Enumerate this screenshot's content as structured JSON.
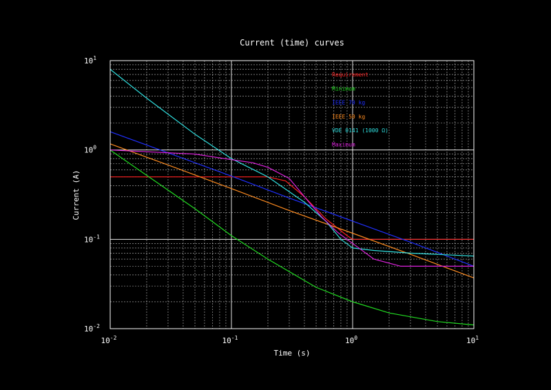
{
  "chart_data": {
    "type": "line",
    "title": "Current (time) curves",
    "xlabel": "Time (s)",
    "ylabel": "Current (A)",
    "xscale": "log",
    "yscale": "log",
    "xlim": [
      0.01,
      10
    ],
    "ylim": [
      0.01,
      10
    ],
    "grid": true,
    "legend_position": "top-right",
    "background_color": "#000000",
    "x_ticks": [
      {
        "base": "10",
        "exp": "-2",
        "value": 0.01
      },
      {
        "base": "10",
        "exp": "-1",
        "value": 0.1
      },
      {
        "base": "10",
        "exp": "0",
        "value": 1
      },
      {
        "base": "10",
        "exp": "1",
        "value": 10
      }
    ],
    "y_ticks": [
      {
        "base": "10",
        "exp": "-2",
        "value": 0.01
      },
      {
        "base": "10",
        "exp": "-1",
        "value": 0.1
      },
      {
        "base": "10",
        "exp": "0",
        "value": 1
      },
      {
        "base": "10",
        "exp": "1",
        "value": 10
      }
    ],
    "series": [
      {
        "name": "Requirement",
        "color": "#ff2020",
        "points": [
          [
            0.01,
            0.5
          ],
          [
            0.2,
            0.5
          ],
          [
            0.28,
            0.45
          ],
          [
            0.4,
            0.3
          ],
          [
            0.6,
            0.17
          ],
          [
            0.9,
            0.11
          ],
          [
            1.0,
            0.1
          ],
          [
            1.3,
            0.1
          ],
          [
            10,
            0.1
          ]
        ]
      },
      {
        "name": "Minimum",
        "color": "#22dd22",
        "points": [
          [
            0.01,
            1.0
          ],
          [
            0.02,
            0.52
          ],
          [
            0.05,
            0.22
          ],
          [
            0.1,
            0.11
          ],
          [
            0.2,
            0.06
          ],
          [
            0.5,
            0.029
          ],
          [
            1.0,
            0.02
          ],
          [
            2.0,
            0.015
          ],
          [
            5.0,
            0.012
          ],
          [
            10,
            0.011
          ]
        ]
      },
      {
        "name": "IEEE 70 kg",
        "color": "#2030ff",
        "points": [
          [
            0.01,
            1.6
          ],
          [
            0.03,
            0.93
          ],
          [
            0.1,
            0.51
          ],
          [
            0.3,
            0.29
          ],
          [
            1.0,
            0.16
          ],
          [
            3.0,
            0.093
          ],
          [
            10,
            0.05
          ]
        ]
      },
      {
        "name": "IEEE 50 kg",
        "color": "#ff8c20",
        "points": [
          [
            0.01,
            1.17
          ],
          [
            0.03,
            0.68
          ],
          [
            0.1,
            0.37
          ],
          [
            0.3,
            0.21
          ],
          [
            1.0,
            0.117
          ],
          [
            3.0,
            0.068
          ],
          [
            10,
            0.037
          ]
        ]
      },
      {
        "name": "VDE 0141 (1000 Ω)",
        "color": "#30e0e0",
        "points": [
          [
            0.01,
            8.0
          ],
          [
            0.02,
            3.8
          ],
          [
            0.05,
            1.5
          ],
          [
            0.1,
            0.8
          ],
          [
            0.2,
            0.5
          ],
          [
            0.4,
            0.26
          ],
          [
            0.6,
            0.16
          ],
          [
            0.8,
            0.1
          ],
          [
            1.0,
            0.08
          ],
          [
            1.5,
            0.075
          ],
          [
            3.0,
            0.07
          ],
          [
            10,
            0.065
          ]
        ]
      },
      {
        "name": "Maximum",
        "color": "#dd22dd",
        "points": [
          [
            0.01,
            1.0
          ],
          [
            0.05,
            0.9
          ],
          [
            0.1,
            0.78
          ],
          [
            0.15,
            0.72
          ],
          [
            0.2,
            0.64
          ],
          [
            0.3,
            0.48
          ],
          [
            0.4,
            0.3
          ],
          [
            0.55,
            0.18
          ],
          [
            0.75,
            0.12
          ],
          [
            1.0,
            0.09
          ],
          [
            1.5,
            0.06
          ],
          [
            2.5,
            0.05
          ],
          [
            10,
            0.05
          ]
        ]
      }
    ]
  }
}
